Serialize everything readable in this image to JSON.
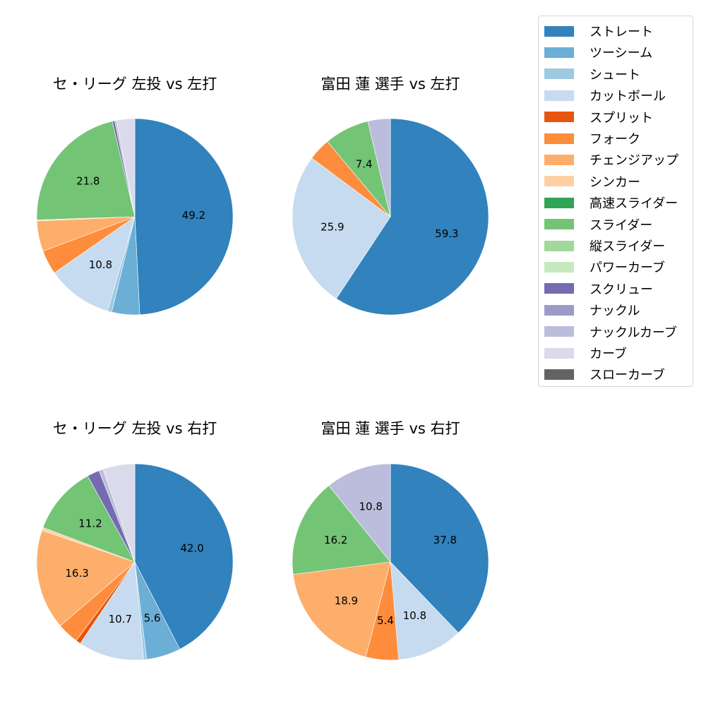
{
  "legend": {
    "items": [
      {
        "label": "ストレート",
        "color": "#3182bd"
      },
      {
        "label": "ツーシーム",
        "color": "#6baed6"
      },
      {
        "label": "シュート",
        "color": "#9ecae1"
      },
      {
        "label": "カットボール",
        "color": "#c6dbef"
      },
      {
        "label": "スプリット",
        "color": "#e6550d"
      },
      {
        "label": "フォーク",
        "color": "#fd8d3c"
      },
      {
        "label": "チェンジアップ",
        "color": "#fdae6b"
      },
      {
        "label": "シンカー",
        "color": "#fdd0a2"
      },
      {
        "label": "高速スライダー",
        "color": "#31a354"
      },
      {
        "label": "スライダー",
        "color": "#74c476"
      },
      {
        "label": "縦スライダー",
        "color": "#a1d99b"
      },
      {
        "label": "パワーカーブ",
        "color": "#c7e9c0"
      },
      {
        "label": "スクリュー",
        "color": "#756bb1"
      },
      {
        "label": "ナックル",
        "color": "#9e9ac8"
      },
      {
        "label": "ナックルカーブ",
        "color": "#bcbddc"
      },
      {
        "label": "カーブ",
        "color": "#dadaeb"
      },
      {
        "label": "スローカーブ",
        "color": "#636363"
      }
    ]
  },
  "chart_data": [
    {
      "type": "pie",
      "title": "セ・リーグ 左投 vs 左打",
      "labels_shown_threshold": 7,
      "slices": [
        {
          "label": "ストレート",
          "value": 49.2
        },
        {
          "label": "ツーシーム",
          "value": 4.6
        },
        {
          "label": "シュート",
          "value": 0.7
        },
        {
          "label": "カットボール",
          "value": 10.8
        },
        {
          "label": "フォーク",
          "value": 4.0
        },
        {
          "label": "チェンジアップ",
          "value": 5.0
        },
        {
          "label": "シンカー",
          "value": 0.2
        },
        {
          "label": "スライダー",
          "value": 21.8
        },
        {
          "label": "スクリュー",
          "value": 0.4
        },
        {
          "label": "ナックルカーブ",
          "value": 0.3
        },
        {
          "label": "カーブ",
          "value": 3.0
        }
      ]
    },
    {
      "type": "pie",
      "title": "富田 蓮 選手 vs 左打",
      "slices": [
        {
          "label": "ストレート",
          "value": 59.3
        },
        {
          "label": "カットボール",
          "value": 25.9
        },
        {
          "label": "フォーク",
          "value": 3.7
        },
        {
          "label": "スライダー",
          "value": 7.4
        },
        {
          "label": "ナックルカーブ",
          "value": 3.7
        }
      ]
    },
    {
      "type": "pie",
      "title": "セ・リーグ 左投 vs 右打",
      "slices": [
        {
          "label": "ストレート",
          "value": 42.0
        },
        {
          "label": "ツーシーム",
          "value": 5.6
        },
        {
          "label": "シュート",
          "value": 0.5
        },
        {
          "label": "カットボール",
          "value": 10.7
        },
        {
          "label": "スプリット",
          "value": 0.8
        },
        {
          "label": "フォーク",
          "value": 3.5
        },
        {
          "label": "チェンジアップ",
          "value": 16.3
        },
        {
          "label": "シンカー",
          "value": 0.5
        },
        {
          "label": "スライダー",
          "value": 11.2
        },
        {
          "label": "スクリュー",
          "value": 2.0
        },
        {
          "label": "ナックルカーブ",
          "value": 0.7
        },
        {
          "label": "カーブ",
          "value": 5.2
        }
      ]
    },
    {
      "type": "pie",
      "title": "富田 蓮 選手 vs 右打",
      "slices": [
        {
          "label": "ストレート",
          "value": 37.8
        },
        {
          "label": "カットボール",
          "value": 10.8
        },
        {
          "label": "フォーク",
          "value": 5.4
        },
        {
          "label": "チェンジアップ",
          "value": 18.9
        },
        {
          "label": "スライダー",
          "value": 16.2
        },
        {
          "label": "ナックルカーブ",
          "value": 10.8
        }
      ]
    }
  ]
}
